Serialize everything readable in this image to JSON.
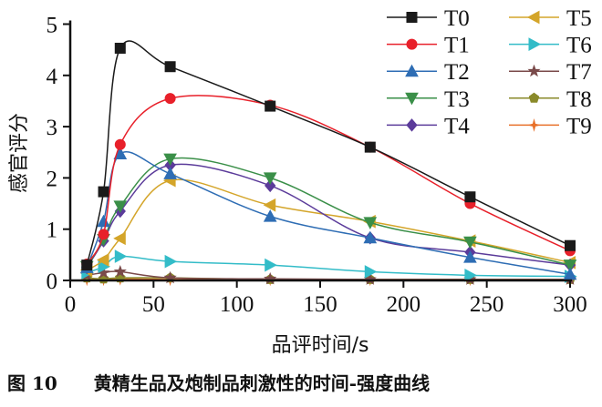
{
  "chart_data": {
    "type": "line",
    "title": "",
    "caption": "图 10　　黄精生品及炮制品刺激性的时间-强度曲线",
    "xlabel": "品评时间/s",
    "ylabel": "感官评分",
    "xlim": [
      0,
      300
    ],
    "ylim": [
      0,
      5
    ],
    "xticks": [
      0,
      50,
      100,
      150,
      200,
      250,
      300
    ],
    "yticks": [
      0,
      1,
      2,
      3,
      4,
      5
    ],
    "grid": false,
    "legend_position": "top-right",
    "x": [
      10,
      20,
      30,
      60,
      120,
      180,
      240,
      300
    ],
    "series": [
      {
        "name": "T0",
        "color": "#1a1a1a",
        "marker": "square",
        "values": [
          0.3,
          1.73,
          4.53,
          4.17,
          3.4,
          2.6,
          1.63,
          0.68
        ]
      },
      {
        "name": "T1",
        "color": "#e8202a",
        "marker": "circle",
        "values": [
          0.32,
          0.9,
          2.65,
          3.55,
          3.42,
          2.6,
          1.5,
          0.58
        ]
      },
      {
        "name": "T2",
        "color": "#2e6db4",
        "marker": "triangle-up",
        "values": [
          0.25,
          1.15,
          2.47,
          2.08,
          1.25,
          0.83,
          0.45,
          0.12
        ]
      },
      {
        "name": "T3",
        "color": "#3a8f48",
        "marker": "triangle-down",
        "values": [
          0.27,
          0.8,
          1.45,
          2.37,
          2.0,
          1.13,
          0.75,
          0.3
        ]
      },
      {
        "name": "T4",
        "color": "#5b3b9a",
        "marker": "diamond",
        "values": [
          0.25,
          0.77,
          1.35,
          2.25,
          1.85,
          0.83,
          0.55,
          0.3
        ]
      },
      {
        "name": "T5",
        "color": "#d4a52a",
        "marker": "triangle-left",
        "values": [
          0.2,
          0.4,
          0.82,
          1.95,
          1.47,
          1.15,
          0.77,
          0.35
        ]
      },
      {
        "name": "T6",
        "color": "#33bcc8",
        "marker": "triangle-right",
        "values": [
          0.15,
          0.27,
          0.47,
          0.37,
          0.3,
          0.17,
          0.1,
          0.08
        ]
      },
      {
        "name": "T7",
        "color": "#7a4a4a",
        "marker": "star",
        "values": [
          0.1,
          0.15,
          0.17,
          0.05,
          0.03,
          0.02,
          0.02,
          0.02
        ]
      },
      {
        "name": "T8",
        "color": "#8a8a2a",
        "marker": "pentagon",
        "values": [
          0.05,
          0.03,
          0.05,
          0.05,
          0.02,
          0.02,
          0.02,
          0.02
        ]
      },
      {
        "name": "T9",
        "color": "#e8702a",
        "marker": "plus",
        "values": [
          0.02,
          0.02,
          0.03,
          0.02,
          0.02,
          0.02,
          0.02,
          0.02
        ]
      }
    ]
  }
}
